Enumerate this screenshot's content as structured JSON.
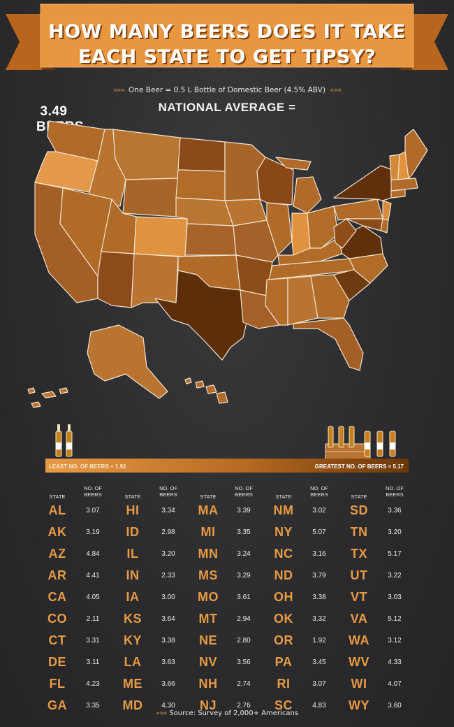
{
  "header": {
    "title_line1": "HOW MANY BEERS DOES IT TAKE",
    "title_line2": "EACH STATE TO GET TIPSY?",
    "subtitle": "One Beer = 0.5 L Bottle of Domestic Beer (4.5% ABV)",
    "national_label": "NATIONAL AVERAGE =",
    "national_value": "3.49 BEERS"
  },
  "legend": {
    "least_label": "LEAST NO. OF BEERS = 1.92",
    "greatest_label": "GREATEST NO. OF BEERS = 5.17",
    "min": 1.92,
    "max": 5.17
  },
  "table": {
    "state_header": "STATE",
    "beers_header_line1": "NO. OF",
    "beers_header_line2": "BEERS",
    "columns": [
      [
        [
          "AL",
          "3.07"
        ],
        [
          "AK",
          "3.19"
        ],
        [
          "AZ",
          "4.84"
        ],
        [
          "AR",
          "4.41"
        ],
        [
          "CA",
          "4.05"
        ],
        [
          "CO",
          "2.11"
        ],
        [
          "CT",
          "3.31"
        ],
        [
          "DE",
          "3.11"
        ],
        [
          "FL",
          "4.23"
        ],
        [
          "GA",
          "3.35"
        ]
      ],
      [
        [
          "HI",
          "3.34"
        ],
        [
          "ID",
          "2.98"
        ],
        [
          "IL",
          "3.20"
        ],
        [
          "IN",
          "2.33"
        ],
        [
          "IA",
          "3.00"
        ],
        [
          "KS",
          "3.64"
        ],
        [
          "KY",
          "3.38"
        ],
        [
          "LA",
          "3.63"
        ],
        [
          "ME",
          "3.66"
        ],
        [
          "MD",
          "4.30"
        ]
      ],
      [
        [
          "MA",
          "3.39"
        ],
        [
          "MI",
          "3.35"
        ],
        [
          "MN",
          "3.24"
        ],
        [
          "MS",
          "3.29"
        ],
        [
          "MO",
          "3.61"
        ],
        [
          "MT",
          "2.94"
        ],
        [
          "NE",
          "2.80"
        ],
        [
          "NV",
          "3.56"
        ],
        [
          "NH",
          "2.74"
        ],
        [
          "NJ",
          "2.76"
        ]
      ],
      [
        [
          "NM",
          "3.02"
        ],
        [
          "NY",
          "5.07"
        ],
        [
          "NC",
          "3.16"
        ],
        [
          "ND",
          "3.79"
        ],
        [
          "OH",
          "3.38"
        ],
        [
          "OK",
          "3.32"
        ],
        [
          "OR",
          "1.92"
        ],
        [
          "PA",
          "3.45"
        ],
        [
          "RI",
          "3.07"
        ],
        [
          "SC",
          "4.83"
        ]
      ],
      [
        [
          "SD",
          "3.36"
        ],
        [
          "TN",
          "3.20"
        ],
        [
          "TX",
          "5.17"
        ],
        [
          "UT",
          "3.22"
        ],
        [
          "VT",
          "3.03"
        ],
        [
          "VA",
          "5.12"
        ],
        [
          "WA",
          "3.12"
        ],
        [
          "WV",
          "4.33"
        ],
        [
          "WI",
          "4.07"
        ],
        [
          "WY",
          "3.60"
        ]
      ]
    ]
  },
  "source": "Source: Survey of 2,000+ Americans",
  "colors": {
    "banner": "#e8963f",
    "banner_dark": "#b8651e",
    "light": "#e89a45",
    "dark": "#5c2e0a",
    "background": "#2b2b2d"
  }
}
